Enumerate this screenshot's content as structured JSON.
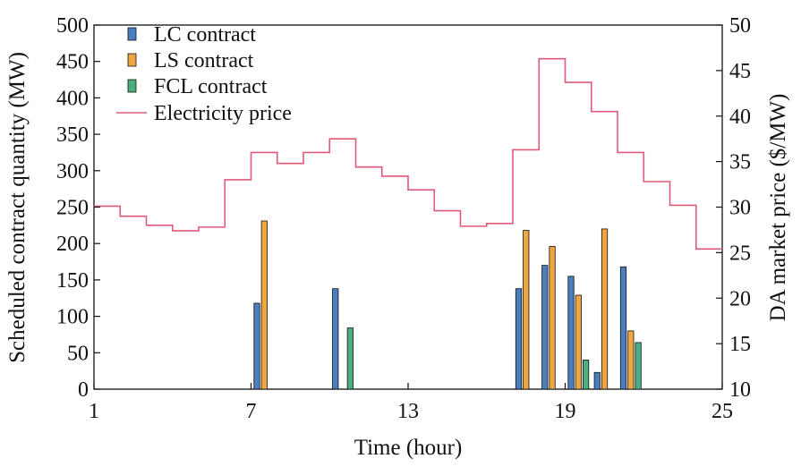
{
  "chart_data": {
    "type": "bar",
    "xlabel": "Time (hour)",
    "ylabel_left": "Scheduled contract quantity (MW)",
    "ylabel_right": "DA market price ($/MW)",
    "x_range": [
      1,
      25
    ],
    "x_ticks": [
      1,
      7,
      13,
      19,
      25
    ],
    "y_left_range": [
      0,
      500
    ],
    "y_left_ticks": [
      0,
      50,
      100,
      150,
      200,
      250,
      300,
      350,
      400,
      450,
      500
    ],
    "y_right_range": [
      10,
      50
    ],
    "y_right_ticks": [
      10,
      15,
      20,
      25,
      30,
      35,
      40,
      45,
      50
    ],
    "legend_position": "top-left",
    "grid": false,
    "bar_series": [
      {
        "name": "LC contract",
        "color": "#4a7ebf",
        "points": [
          {
            "hour": 7,
            "value": 118
          },
          {
            "hour": 10,
            "value": 138
          },
          {
            "hour": 17,
            "value": 138
          },
          {
            "hour": 18,
            "value": 170
          },
          {
            "hour": 19,
            "value": 155
          },
          {
            "hour": 20,
            "value": 23
          },
          {
            "hour": 21,
            "value": 168
          }
        ]
      },
      {
        "name": "LS contract",
        "color": "#f0a640",
        "points": [
          {
            "hour": 7,
            "value": 231
          },
          {
            "hour": 17,
            "value": 218
          },
          {
            "hour": 18,
            "value": 196
          },
          {
            "hour": 19,
            "value": 129
          },
          {
            "hour": 20,
            "value": 220
          },
          {
            "hour": 21,
            "value": 80
          }
        ]
      },
      {
        "name": "FCL contract",
        "color": "#4caf7d",
        "points": [
          {
            "hour": 10,
            "value": 84
          },
          {
            "hour": 19,
            "value": 40
          },
          {
            "hour": 21,
            "value": 64
          }
        ]
      }
    ],
    "price_series": {
      "name": "Electricity price",
      "color": "#e05a78",
      "type": "step",
      "steps": [
        {
          "start": 1,
          "price": 30.1
        },
        {
          "start": 2,
          "price": 29.0
        },
        {
          "start": 3,
          "price": 28.0
        },
        {
          "start": 4,
          "price": 27.4
        },
        {
          "start": 5,
          "price": 27.8
        },
        {
          "start": 6,
          "price": 33.0
        },
        {
          "start": 7,
          "price": 36.0
        },
        {
          "start": 8,
          "price": 34.8
        },
        {
          "start": 9,
          "price": 36.0
        },
        {
          "start": 10,
          "price": 37.5
        },
        {
          "start": 11,
          "price": 34.4
        },
        {
          "start": 12,
          "price": 33.4
        },
        {
          "start": 13,
          "price": 31.9
        },
        {
          "start": 14,
          "price": 29.6
        },
        {
          "start": 15,
          "price": 27.9
        },
        {
          "start": 16,
          "price": 28.2
        },
        {
          "start": 17,
          "price": 36.3
        },
        {
          "start": 18,
          "price": 46.3
        },
        {
          "start": 19,
          "price": 43.7
        },
        {
          "start": 20,
          "price": 40.5
        },
        {
          "start": 21,
          "price": 36.0
        },
        {
          "start": 22,
          "price": 32.8
        },
        {
          "start": 23,
          "price": 30.2
        },
        {
          "start": 24,
          "price": 25.4
        }
      ]
    }
  }
}
